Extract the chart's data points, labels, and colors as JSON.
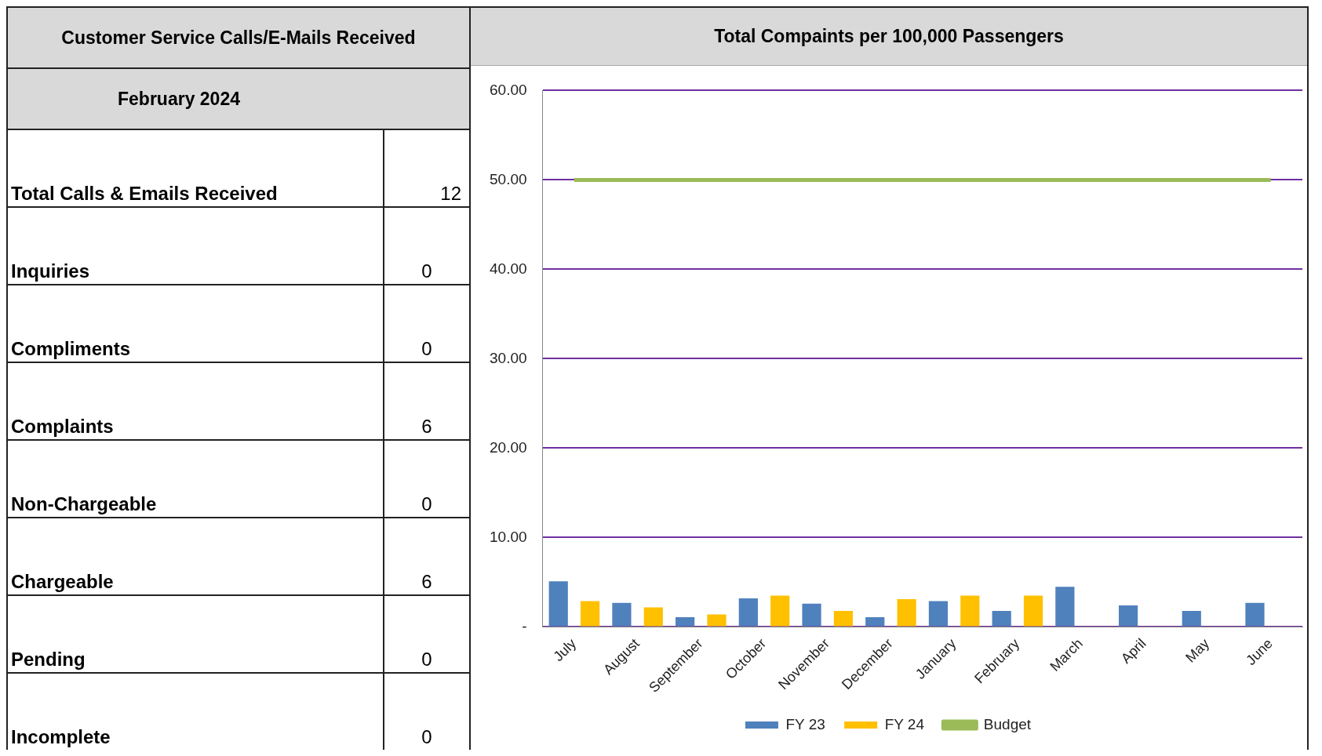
{
  "chart_data": [
    {
      "type": "other",
      "title": "Customer Service Calls/E-Mails Received",
      "subtitle": "February 2024",
      "categories": [
        "Total Calls & Emails Received",
        "Inquiries",
        "Compliments",
        "Complaints",
        "Non-Chargeable",
        "Chargeable",
        "Pending",
        "Incomplete"
      ],
      "values": [
        12,
        0,
        0,
        6,
        0,
        6,
        0,
        0
      ],
      "data_labels": true
    },
    {
      "type": "bar",
      "title": "Total Compaints per 100,000 Passengers",
      "categories": [
        "July",
        "August",
        "September",
        "October",
        "November",
        "December",
        "January",
        "February",
        "March",
        "April",
        "May",
        "June"
      ],
      "series": [
        {
          "name": "FY 23",
          "color": "#4f81bd",
          "values": [
            5.1,
            2.7,
            1.1,
            3.2,
            2.6,
            1.1,
            2.9,
            1.8,
            4.5,
            2.4,
            1.8,
            2.7
          ]
        },
        {
          "name": "FY 24",
          "color": "#ffc000",
          "values": [
            2.9,
            2.2,
            1.4,
            3.5,
            1.8,
            3.1,
            3.5,
            3.5,
            null,
            null,
            null,
            null
          ]
        },
        {
          "name": "Budget",
          "type": "line",
          "color": "#9bbb59",
          "values": [
            50,
            50,
            50,
            50,
            50,
            50,
            50,
            50,
            50,
            50,
            50,
            50
          ]
        }
      ],
      "ylim": [
        0,
        60
      ],
      "yticks": [
        {
          "value": 0,
          "label": "-"
        },
        {
          "value": 10,
          "label": "10.00"
        },
        {
          "value": 20,
          "label": "20.00"
        },
        {
          "value": 30,
          "label": "30.00"
        },
        {
          "value": 40,
          "label": "40.00"
        },
        {
          "value": 50,
          "label": "50.00"
        },
        {
          "value": 60,
          "label": "60.00"
        }
      ],
      "grid": "y",
      "legend": "bottom"
    }
  ]
}
